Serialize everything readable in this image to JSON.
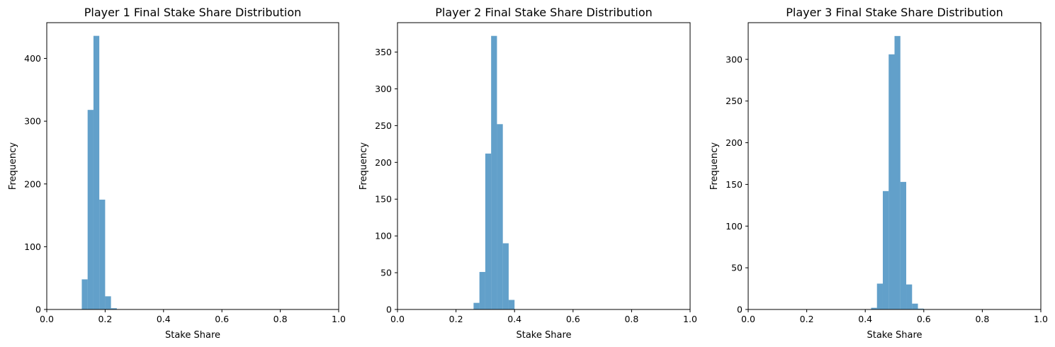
{
  "chart_data": [
    {
      "type": "bar",
      "title": "Player 1 Final Stake Share Distribution",
      "xlabel": "Stake Share",
      "ylabel": "Frequency",
      "xlim": [
        0,
        1
      ],
      "ylim": [
        0,
        457
      ],
      "xticks": [
        "0.0",
        "0.2",
        "0.4",
        "0.6",
        "0.8",
        "1.0"
      ],
      "yticks": [
        0,
        100,
        200,
        300,
        400
      ],
      "bin_width": 0.02,
      "bins": [
        {
          "x0": 0.12,
          "x1": 0.14,
          "count": 48
        },
        {
          "x0": 0.14,
          "x1": 0.16,
          "count": 318
        },
        {
          "x0": 0.16,
          "x1": 0.18,
          "count": 436
        },
        {
          "x0": 0.18,
          "x1": 0.2,
          "count": 175
        },
        {
          "x0": 0.2,
          "x1": 0.22,
          "count": 21
        },
        {
          "x0": 0.22,
          "x1": 0.24,
          "count": 2
        }
      ],
      "color": "#1f77b4",
      "opacity": 0.7
    },
    {
      "type": "bar",
      "title": "Player 2 Final Stake Share Distribution",
      "xlabel": "Stake Share",
      "ylabel": "Frequency",
      "xlim": [
        0,
        1
      ],
      "ylim": [
        0,
        390
      ],
      "xticks": [
        "0.0",
        "0.2",
        "0.4",
        "0.6",
        "0.8",
        "1.0"
      ],
      "yticks": [
        0,
        50,
        100,
        150,
        200,
        250,
        300,
        350
      ],
      "bin_width": 0.02,
      "bins": [
        {
          "x0": 0.26,
          "x1": 0.28,
          "count": 9
        },
        {
          "x0": 0.28,
          "x1": 0.3,
          "count": 51
        },
        {
          "x0": 0.3,
          "x1": 0.32,
          "count": 212
        },
        {
          "x0": 0.32,
          "x1": 0.34,
          "count": 372
        },
        {
          "x0": 0.34,
          "x1": 0.36,
          "count": 252
        },
        {
          "x0": 0.36,
          "x1": 0.38,
          "count": 90
        },
        {
          "x0": 0.38,
          "x1": 0.4,
          "count": 13
        }
      ],
      "color": "#1f77b4",
      "opacity": 0.7
    },
    {
      "type": "bar",
      "title": "Player 3 Final Stake Share Distribution",
      "xlabel": "Stake Share",
      "ylabel": "Frequency",
      "xlim": [
        0,
        1
      ],
      "ylim": [
        0,
        344
      ],
      "xticks": [
        "0.0",
        "0.2",
        "0.4",
        "0.6",
        "0.8",
        "1.0"
      ],
      "yticks": [
        0,
        50,
        100,
        150,
        200,
        250,
        300
      ],
      "bin_width": 0.02,
      "bins": [
        {
          "x0": 0.42,
          "x1": 0.44,
          "count": 2
        },
        {
          "x0": 0.44,
          "x1": 0.46,
          "count": 31
        },
        {
          "x0": 0.46,
          "x1": 0.48,
          "count": 142
        },
        {
          "x0": 0.48,
          "x1": 0.5,
          "count": 306
        },
        {
          "x0": 0.5,
          "x1": 0.52,
          "count": 328
        },
        {
          "x0": 0.52,
          "x1": 0.54,
          "count": 153
        },
        {
          "x0": 0.54,
          "x1": 0.56,
          "count": 30
        },
        {
          "x0": 0.56,
          "x1": 0.58,
          "count": 7
        },
        {
          "x0": 0.58,
          "x1": 0.6,
          "count": 1
        }
      ],
      "color": "#1f77b4",
      "opacity": 0.7
    }
  ]
}
